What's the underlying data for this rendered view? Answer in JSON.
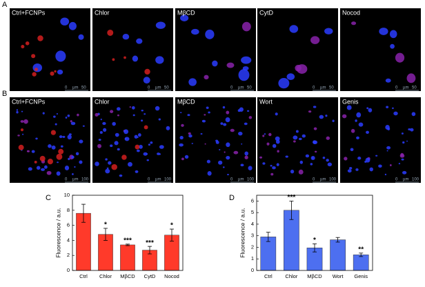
{
  "panels": [
    {
      "label": "A",
      "scale_bar": {
        "start": "0",
        "unit": "µm",
        "end": "50"
      },
      "images": [
        "Ctrl+FCNPs",
        "Chlor",
        "MβCD",
        "CytD",
        "Nocod"
      ]
    },
    {
      "label": "B",
      "scale_bar": {
        "start": "0",
        "unit": "µm",
        "end": "100"
      },
      "images": [
        "Ctrl+FCNPs",
        "Chlor",
        "MβCD",
        "Wort",
        "Genis"
      ]
    }
  ],
  "chart_data": [
    {
      "type": "bar",
      "label": "C",
      "y_label": "Fluorescence / a.u.",
      "categories": [
        "Ctrl",
        "Chlor",
        "MβCD",
        "CytD",
        "Nocod"
      ],
      "values": [
        7.6,
        4.8,
        3.4,
        2.7,
        4.7
      ],
      "errors": [
        1.2,
        0.8,
        0.1,
        0.5,
        0.8
      ],
      "significance": [
        null,
        "*",
        "***",
        "***",
        "*"
      ],
      "color": "#ff3a2a",
      "ylim": [
        0,
        10
      ],
      "yticks": [
        0,
        2,
        4,
        6,
        8,
        10
      ]
    },
    {
      "type": "bar",
      "label": "D",
      "y_label": "Fluorescence / a.u.",
      "categories": [
        "Ctrl",
        "Chlor",
        "MβCD",
        "Wort",
        "Genis"
      ],
      "values": [
        2.9,
        5.2,
        1.95,
        2.65,
        1.35
      ],
      "errors": [
        0.4,
        0.8,
        0.35,
        0.2,
        0.15
      ],
      "significance": [
        null,
        "***",
        "*",
        null,
        "**"
      ],
      "color": "#4d6ff0",
      "ylim": [
        0,
        6.5
      ],
      "yticks": [
        0,
        1,
        2,
        3,
        4,
        5,
        6
      ]
    }
  ]
}
